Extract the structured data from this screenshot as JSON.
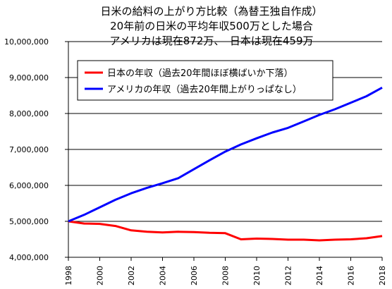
{
  "chart_data": {
    "type": "line",
    "title_lines": [
      "日米の給料の上がり方比較（為替王独自作成）",
      "20年前の日米の平均年収500万とした場合",
      "アメリカは現在872万、　日本は現在459万"
    ],
    "xlabel": "",
    "ylabel": "",
    "x": [
      1998,
      1999,
      2000,
      2001,
      2002,
      2003,
      2004,
      2005,
      2006,
      2007,
      2008,
      2009,
      2010,
      2011,
      2012,
      2013,
      2014,
      2015,
      2016,
      2017,
      2018
    ],
    "x_ticks": [
      1998,
      2000,
      2002,
      2004,
      2006,
      2008,
      2010,
      2012,
      2014,
      2016,
      2018
    ],
    "y_ticks": [
      4000000,
      5000000,
      6000000,
      7000000,
      8000000,
      9000000,
      10000000
    ],
    "y_tick_labels": [
      "4,000,000",
      "5,000,000",
      "6,000,000",
      "7,000,000",
      "8,000,000",
      "9,000,000",
      "10,000,000"
    ],
    "xlim": [
      1998,
      2018
    ],
    "ylim": [
      4000000,
      10000000
    ],
    "grid": true,
    "legend_position": "upper-left",
    "series": [
      {
        "name": "日本の年収（過去20年間ほぼ横ばいか下落）",
        "color": "#ff0000",
        "values": [
          5000000,
          4940000,
          4930000,
          4870000,
          4750000,
          4710000,
          4690000,
          4710000,
          4700000,
          4680000,
          4670000,
          4500000,
          4520000,
          4510000,
          4490000,
          4490000,
          4470000,
          4490000,
          4500000,
          4530000,
          4590000
        ]
      },
      {
        "name": "アメリカの年収（過去20年間上がりっぱなし）",
        "color": "#0000ff",
        "values": [
          5000000,
          5180000,
          5390000,
          5600000,
          5780000,
          5930000,
          6060000,
          6200000,
          6450000,
          6700000,
          6940000,
          7140000,
          7310000,
          7470000,
          7600000,
          7780000,
          7960000,
          8120000,
          8300000,
          8480000,
          8720000
        ]
      }
    ]
  }
}
